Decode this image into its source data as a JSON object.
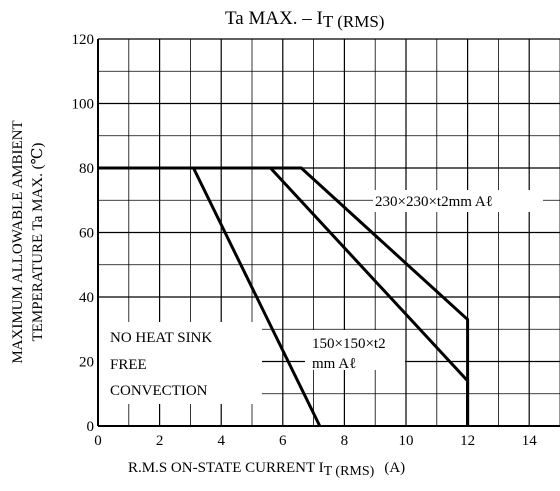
{
  "chart_data": {
    "type": "line",
    "title": "Ta MAX. – I",
    "title_sub": "T (RMS)",
    "xlabel": "R.M.S ON-STATE CURRENT  I",
    "xlabel_sub": "T (RMS)",
    "xlabel_unit": "(A)",
    "ylabel_line1": "MAXIMUM ALLOWABLE AMBIENT",
    "ylabel_line2": "TEMPERATURE   Ta MAX.  (℃)",
    "xlim": [
      0,
      15
    ],
    "ylim": [
      0,
      120
    ],
    "x_ticks": [
      0,
      2,
      4,
      6,
      8,
      10,
      12,
      14
    ],
    "y_ticks": [
      0,
      20,
      40,
      60,
      80,
      100,
      120
    ],
    "grid": true,
    "series": [
      {
        "name": "NO HEAT SINK FREE CONVECTION",
        "points": [
          [
            0,
            80
          ],
          [
            3.1,
            80
          ],
          [
            7.2,
            0
          ]
        ]
      },
      {
        "name": "150×150×t2 mm Aℓ",
        "points": [
          [
            0,
            80
          ],
          [
            5.6,
            80
          ],
          [
            12,
            14
          ],
          [
            12,
            0
          ]
        ]
      },
      {
        "name": "230×230×t2mm Aℓ",
        "points": [
          [
            0,
            80
          ],
          [
            6.6,
            80
          ],
          [
            12,
            33
          ],
          [
            12,
            0
          ]
        ]
      }
    ],
    "annotations": {
      "no_heat_sink": [
        "NO HEAT SINK",
        "FREE",
        "CONVECTION"
      ],
      "sink_150": [
        "150×150×t2",
        "mm Aℓ"
      ],
      "sink_230": "230×230×t2mm Aℓ"
    }
  }
}
